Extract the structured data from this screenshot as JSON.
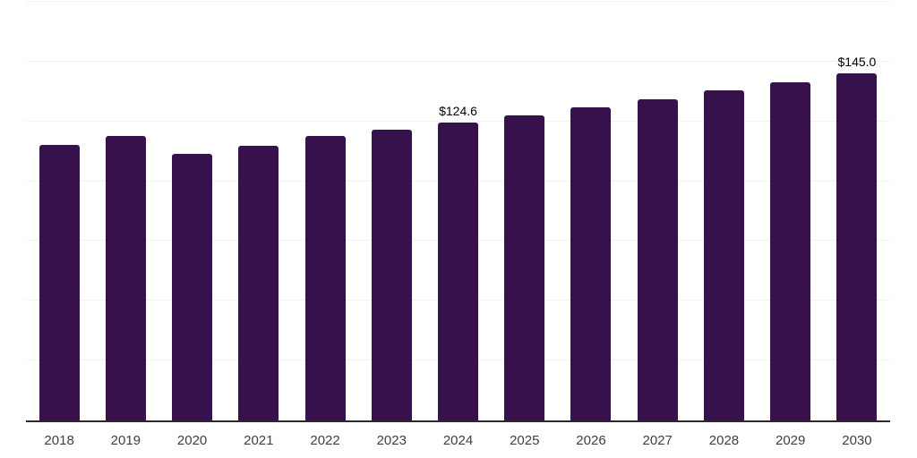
{
  "chart_data": {
    "type": "bar",
    "title": "",
    "xlabel": "",
    "ylabel": "",
    "categories": [
      "2018",
      "2019",
      "2020",
      "2021",
      "2022",
      "2023",
      "2024",
      "2025",
      "2026",
      "2027",
      "2028",
      "2029",
      "2030"
    ],
    "values": [
      115.1,
      118.9,
      111.4,
      114.7,
      118.9,
      121.6,
      124.6,
      127.7,
      131.0,
      134.4,
      137.8,
      141.5,
      145.0
    ],
    "value_labels": [
      "",
      "",
      "",
      "",
      "",
      "",
      "$124.6",
      "",
      "",
      "",
      "",
      "",
      "$145.0"
    ],
    "ylim": [
      0,
      175
    ],
    "gridline_step": 25,
    "grid": "horizontal",
    "legend_position": "none",
    "colors": {
      "bar": "#37114b",
      "gridline": "#f2f2f2",
      "axis_line": "#2a2a2a",
      "tick_label": "#404040",
      "value_label": "#000000",
      "background": "#ffffff"
    }
  }
}
